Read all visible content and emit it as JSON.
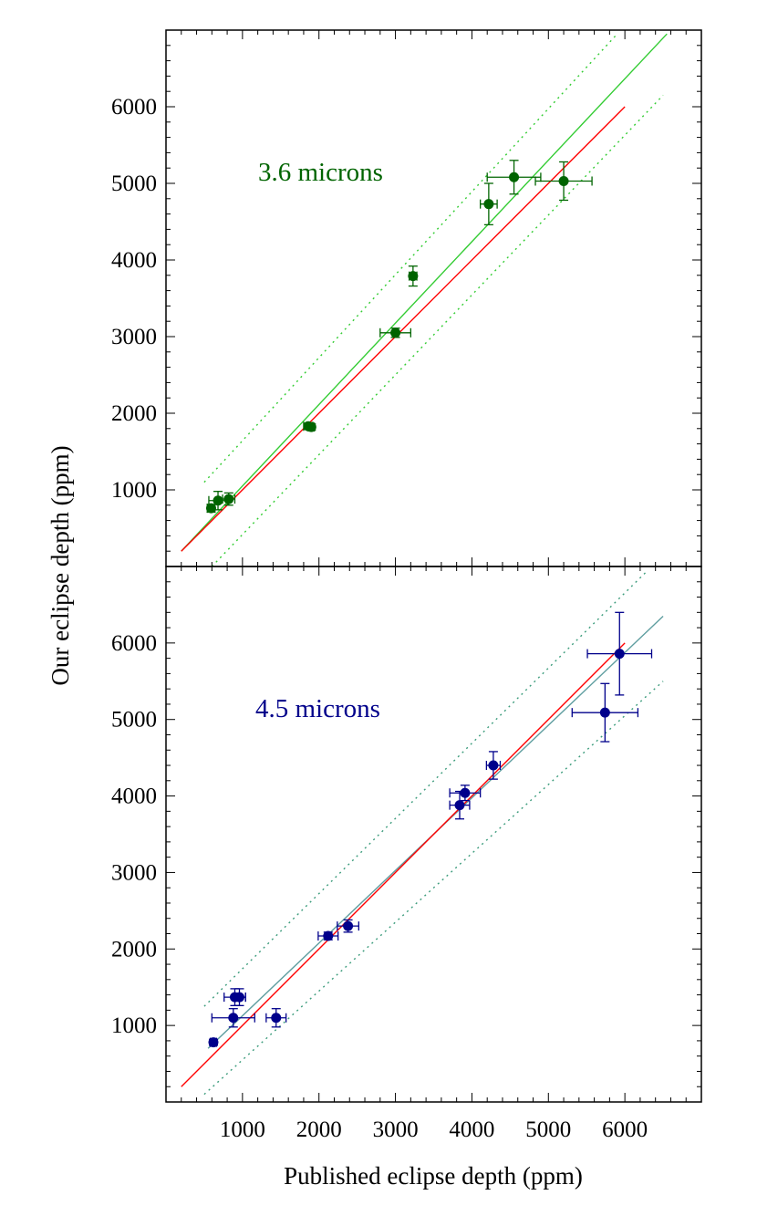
{
  "chart_data": {
    "type": "scatter",
    "xlabel": "Published eclipse depth (ppm)",
    "ylabel": "Our eclipse depth (ppm)",
    "xlim": [
      0,
      7000
    ],
    "grid": false,
    "x_ticks": [
      1000,
      2000,
      3000,
      4000,
      5000,
      6000
    ],
    "panels": [
      {
        "label": "3.6 microns",
        "ylim": [
          0,
          7000
        ],
        "y_ticks": [
          1000,
          2000,
          3000,
          4000,
          5000,
          6000
        ],
        "point_color": "#006400",
        "fit_color": "#33cc33",
        "band_color": "#33cc33",
        "reference_color": "#ff0000",
        "reference_line": {
          "x": [
            200,
            6000
          ],
          "y": [
            200,
            6000
          ]
        },
        "fit_line": {
          "x": [
            200,
            6550
          ],
          "y": [
            200,
            6950
          ]
        },
        "band_upper": {
          "x": [
            500,
            5900
          ],
          "y": [
            1100,
            6950
          ]
        },
        "band_lower": {
          "x": [
            600,
            6500
          ],
          "y": [
            0,
            6150
          ]
        },
        "points": [
          {
            "x": 590,
            "y": 760,
            "xerr": 50,
            "yerr": 50
          },
          {
            "x": 680,
            "y": 860,
            "xerr": 120,
            "yerr": 120
          },
          {
            "x": 820,
            "y": 880,
            "xerr": 80,
            "yerr": 80
          },
          {
            "x": 1860,
            "y": 1830,
            "xerr": 60,
            "yerr": 40
          },
          {
            "x": 1900,
            "y": 1820,
            "xerr": 40,
            "yerr": 40
          },
          {
            "x": 3000,
            "y": 3050,
            "xerr": 200,
            "yerr": 60
          },
          {
            "x": 3230,
            "y": 3790,
            "xerr": 50,
            "yerr": 130
          },
          {
            "x": 4220,
            "y": 4730,
            "xerr": 110,
            "yerr": 270
          },
          {
            "x": 4550,
            "y": 5080,
            "xerr": 350,
            "yerr": 220
          },
          {
            "x": 5200,
            "y": 5030,
            "xerr": 370,
            "yerr": 250
          }
        ]
      },
      {
        "label": "4.5 microns",
        "ylim": [
          0,
          7000
        ],
        "y_ticks": [
          1000,
          2000,
          3000,
          4000,
          5000,
          6000
        ],
        "point_color": "#00008b",
        "fit_color": "#5f9ea0",
        "band_color": "#3c9c7c",
        "reference_color": "#ff0000",
        "reference_line": {
          "x": [
            200,
            6000
          ],
          "y": [
            200,
            6000
          ]
        },
        "fit_line": {
          "x": [
            550,
            6500
          ],
          "y": [
            700,
            6350
          ]
        },
        "band_upper": {
          "x": [
            500,
            6300
          ],
          "y": [
            1250,
            6950
          ]
        },
        "band_lower": {
          "x": [
            500,
            6500
          ],
          "y": [
            100,
            5500
          ]
        },
        "points": [
          {
            "x": 620,
            "y": 780,
            "xerr": 40,
            "yerr": 40
          },
          {
            "x": 880,
            "y": 1100,
            "xerr": 280,
            "yerr": 120
          },
          {
            "x": 900,
            "y": 1370,
            "xerr": 140,
            "yerr": 110
          },
          {
            "x": 960,
            "y": 1370,
            "xerr": 80,
            "yerr": 110
          },
          {
            "x": 1440,
            "y": 1100,
            "xerr": 130,
            "yerr": 120
          },
          {
            "x": 2120,
            "y": 2170,
            "xerr": 130,
            "yerr": 50
          },
          {
            "x": 2380,
            "y": 2300,
            "xerr": 140,
            "yerr": 80
          },
          {
            "x": 3840,
            "y": 3880,
            "xerr": 130,
            "yerr": 180
          },
          {
            "x": 3910,
            "y": 4040,
            "xerr": 200,
            "yerr": 100
          },
          {
            "x": 4280,
            "y": 4400,
            "xerr": 90,
            "yerr": 180
          },
          {
            "x": 5740,
            "y": 5090,
            "xerr": 430,
            "yerr": 380
          },
          {
            "x": 5930,
            "y": 5860,
            "xerr": 420,
            "yerr": 540
          }
        ]
      }
    ]
  }
}
